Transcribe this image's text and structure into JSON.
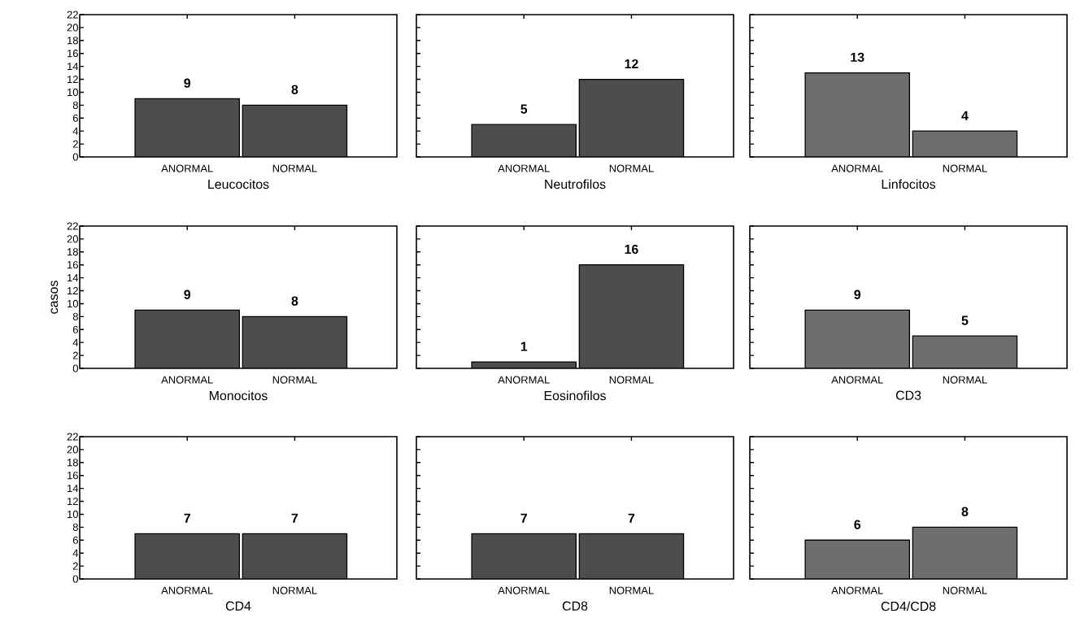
{
  "chart_data": [
    {
      "type": "bar",
      "categories": [
        "ANORMAL",
        "NORMAL"
      ],
      "values": [
        9,
        8
      ],
      "color": "#4d4d4d",
      "xlabel": "Leucocitos",
      "ylim": [
        0,
        22
      ],
      "yticks": [
        0,
        2,
        4,
        6,
        8,
        10,
        12,
        14,
        16,
        18,
        20,
        22
      ],
      "data_labels": true
    },
    {
      "type": "bar",
      "categories": [
        "ANORMAL",
        "NORMAL"
      ],
      "values": [
        5,
        12
      ],
      "color": "#4d4d4d",
      "xlabel": "Neutrofilos",
      "ylim": [
        0,
        22
      ],
      "yticks": [
        0,
        2,
        4,
        6,
        8,
        10,
        12,
        14,
        16,
        18,
        20,
        22
      ],
      "data_labels": true,
      "tick_labels": "x"
    },
    {
      "type": "bar",
      "categories": [
        "ANORMAL",
        "NORMAL"
      ],
      "values": [
        13,
        4
      ],
      "color": "#6e6e6e",
      "xlabel": "Linfocitos",
      "ylim": [
        0,
        22
      ],
      "yticks": [
        0,
        2,
        4,
        6,
        8,
        10,
        12,
        14,
        16,
        18,
        20,
        22
      ],
      "data_labels": true,
      "tick_labels": "x"
    },
    {
      "type": "bar",
      "categories": [
        "ANORMAL",
        "NORMAL"
      ],
      "values": [
        9,
        8
      ],
      "color": "#4d4d4d",
      "xlabel": "Monocitos",
      "ylabel": "casos",
      "ylim": [
        0,
        22
      ],
      "yticks": [
        0,
        2,
        4,
        6,
        8,
        10,
        12,
        14,
        16,
        18,
        20,
        22
      ],
      "data_labels": true
    },
    {
      "type": "bar",
      "categories": [
        "ANORMAL",
        "NORMAL"
      ],
      "values": [
        1,
        16
      ],
      "color": "#4d4d4d",
      "xlabel": "Eosinofilos",
      "ylim": [
        0,
        22
      ],
      "yticks": [
        0,
        2,
        4,
        6,
        8,
        10,
        12,
        14,
        16,
        18,
        20,
        22
      ],
      "data_labels": true,
      "tick_labels": "x"
    },
    {
      "type": "bar",
      "categories": [
        "ANORMAL",
        "NORMAL"
      ],
      "values": [
        9,
        5
      ],
      "color": "#6e6e6e",
      "xlabel": "CD3",
      "ylim": [
        0,
        22
      ],
      "yticks": [
        0,
        2,
        4,
        6,
        8,
        10,
        12,
        14,
        16,
        18,
        20,
        22
      ],
      "data_labels": true,
      "tick_labels": "x"
    },
    {
      "type": "bar",
      "categories": [
        "ANORMAL",
        "NORMAL"
      ],
      "values": [
        7,
        7
      ],
      "color": "#4d4d4d",
      "xlabel": "CD4",
      "ylim": [
        0,
        22
      ],
      "yticks": [
        0,
        2,
        4,
        6,
        8,
        10,
        12,
        14,
        16,
        18,
        20,
        22
      ],
      "data_labels": true
    },
    {
      "type": "bar",
      "categories": [
        "ANORMAL",
        "NORMAL"
      ],
      "values": [
        7,
        7
      ],
      "color": "#4d4d4d",
      "xlabel": "CD8",
      "ylim": [
        0,
        22
      ],
      "yticks": [
        0,
        2,
        4,
        6,
        8,
        10,
        12,
        14,
        16,
        18,
        20,
        22
      ],
      "data_labels": true,
      "tick_labels": "x"
    },
    {
      "type": "bar",
      "categories": [
        "ANORMAL",
        "NORMAL"
      ],
      "values": [
        6,
        8
      ],
      "color": "#6e6e6e",
      "xlabel": "CD4/CD8",
      "ylim": [
        0,
        22
      ],
      "yticks": [
        0,
        2,
        4,
        6,
        8,
        10,
        12,
        14,
        16,
        18,
        20,
        22
      ],
      "data_labels": true,
      "tick_labels": "x"
    }
  ]
}
